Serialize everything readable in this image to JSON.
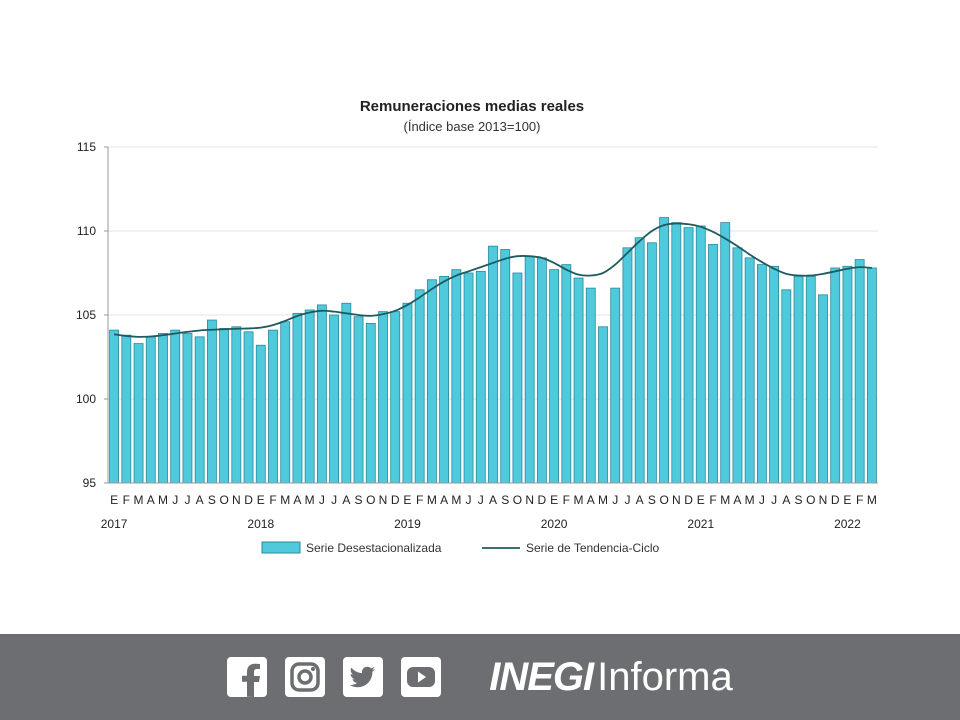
{
  "chart_data": {
    "type": "bar",
    "title": "Remuneraciones medias reales",
    "subtitle": "(Índice base 2013=100)",
    "ylim": [
      95,
      115
    ],
    "yticks": [
      95,
      100,
      105,
      110,
      115
    ],
    "grid": "horizontal",
    "legend_position": "bottom",
    "month_labels": [
      "E",
      "F",
      "M",
      "A",
      "M",
      "J",
      "J",
      "A",
      "S",
      "O",
      "N",
      "D",
      "E",
      "F",
      "M",
      "A",
      "M",
      "J",
      "J",
      "A",
      "S",
      "O",
      "N",
      "D",
      "E",
      "F",
      "M",
      "A",
      "M",
      "J",
      "J",
      "A",
      "S",
      "O",
      "N",
      "D",
      "E",
      "F",
      "M",
      "A",
      "M",
      "J",
      "J",
      "A",
      "S",
      "O",
      "N",
      "D",
      "E",
      "F",
      "M",
      "A",
      "M",
      "J",
      "J",
      "A",
      "S",
      "O",
      "N",
      "D",
      "E",
      "F",
      "M"
    ],
    "year_labels": [
      {
        "label": "2017",
        "index": 0
      },
      {
        "label": "2018",
        "index": 12
      },
      {
        "label": "2019",
        "index": 24
      },
      {
        "label": "2020",
        "index": 36
      },
      {
        "label": "2021",
        "index": 48
      },
      {
        "label": "2022",
        "index": 60
      }
    ],
    "series": [
      {
        "name": "Serie Desestacionalizada",
        "type": "bar",
        "color": "#4fc9dc",
        "values": [
          104.1,
          103.8,
          103.3,
          103.7,
          103.9,
          104.1,
          103.9,
          103.7,
          104.7,
          104.2,
          104.3,
          104.0,
          103.2,
          104.1,
          104.6,
          105.1,
          105.3,
          105.6,
          105.0,
          105.7,
          104.9,
          104.5,
          105.2,
          105.2,
          105.7,
          106.5,
          107.1,
          107.3,
          107.7,
          107.5,
          107.6,
          109.1,
          108.9,
          107.5,
          108.5,
          108.4,
          107.7,
          108.0,
          107.2,
          106.6,
          104.3,
          106.6,
          109.0,
          109.6,
          109.3,
          110.8,
          110.5,
          110.2,
          110.3,
          109.2,
          110.5,
          109.0,
          108.4,
          108.0,
          107.9,
          106.5,
          107.3,
          107.3,
          106.2,
          107.8,
          107.9,
          108.3,
          107.8
        ]
      },
      {
        "name": "Serie de Tendencia-Ciclo",
        "type": "line",
        "color": "#1e5b5e",
        "values": [
          103.85,
          103.75,
          103.7,
          103.72,
          103.8,
          103.9,
          104.0,
          104.08,
          104.12,
          104.15,
          104.18,
          104.2,
          104.25,
          104.4,
          104.65,
          104.95,
          105.15,
          105.25,
          105.2,
          105.1,
          105.0,
          104.95,
          105.05,
          105.25,
          105.6,
          106.05,
          106.55,
          107.0,
          107.35,
          107.6,
          107.85,
          108.1,
          108.35,
          108.5,
          108.5,
          108.4,
          108.1,
          107.7,
          107.4,
          107.35,
          107.5,
          108.0,
          108.7,
          109.4,
          110.0,
          110.35,
          110.45,
          110.4,
          110.25,
          109.95,
          109.55,
          109.1,
          108.6,
          108.15,
          107.75,
          107.45,
          107.35,
          107.35,
          107.45,
          107.6,
          107.75,
          107.85,
          107.8
        ]
      }
    ]
  },
  "footer": {
    "icons": [
      "facebook-icon",
      "instagram-icon",
      "twitter-icon",
      "youtube-icon"
    ],
    "brand_bold": "INEGI",
    "brand_light": "Informa"
  }
}
